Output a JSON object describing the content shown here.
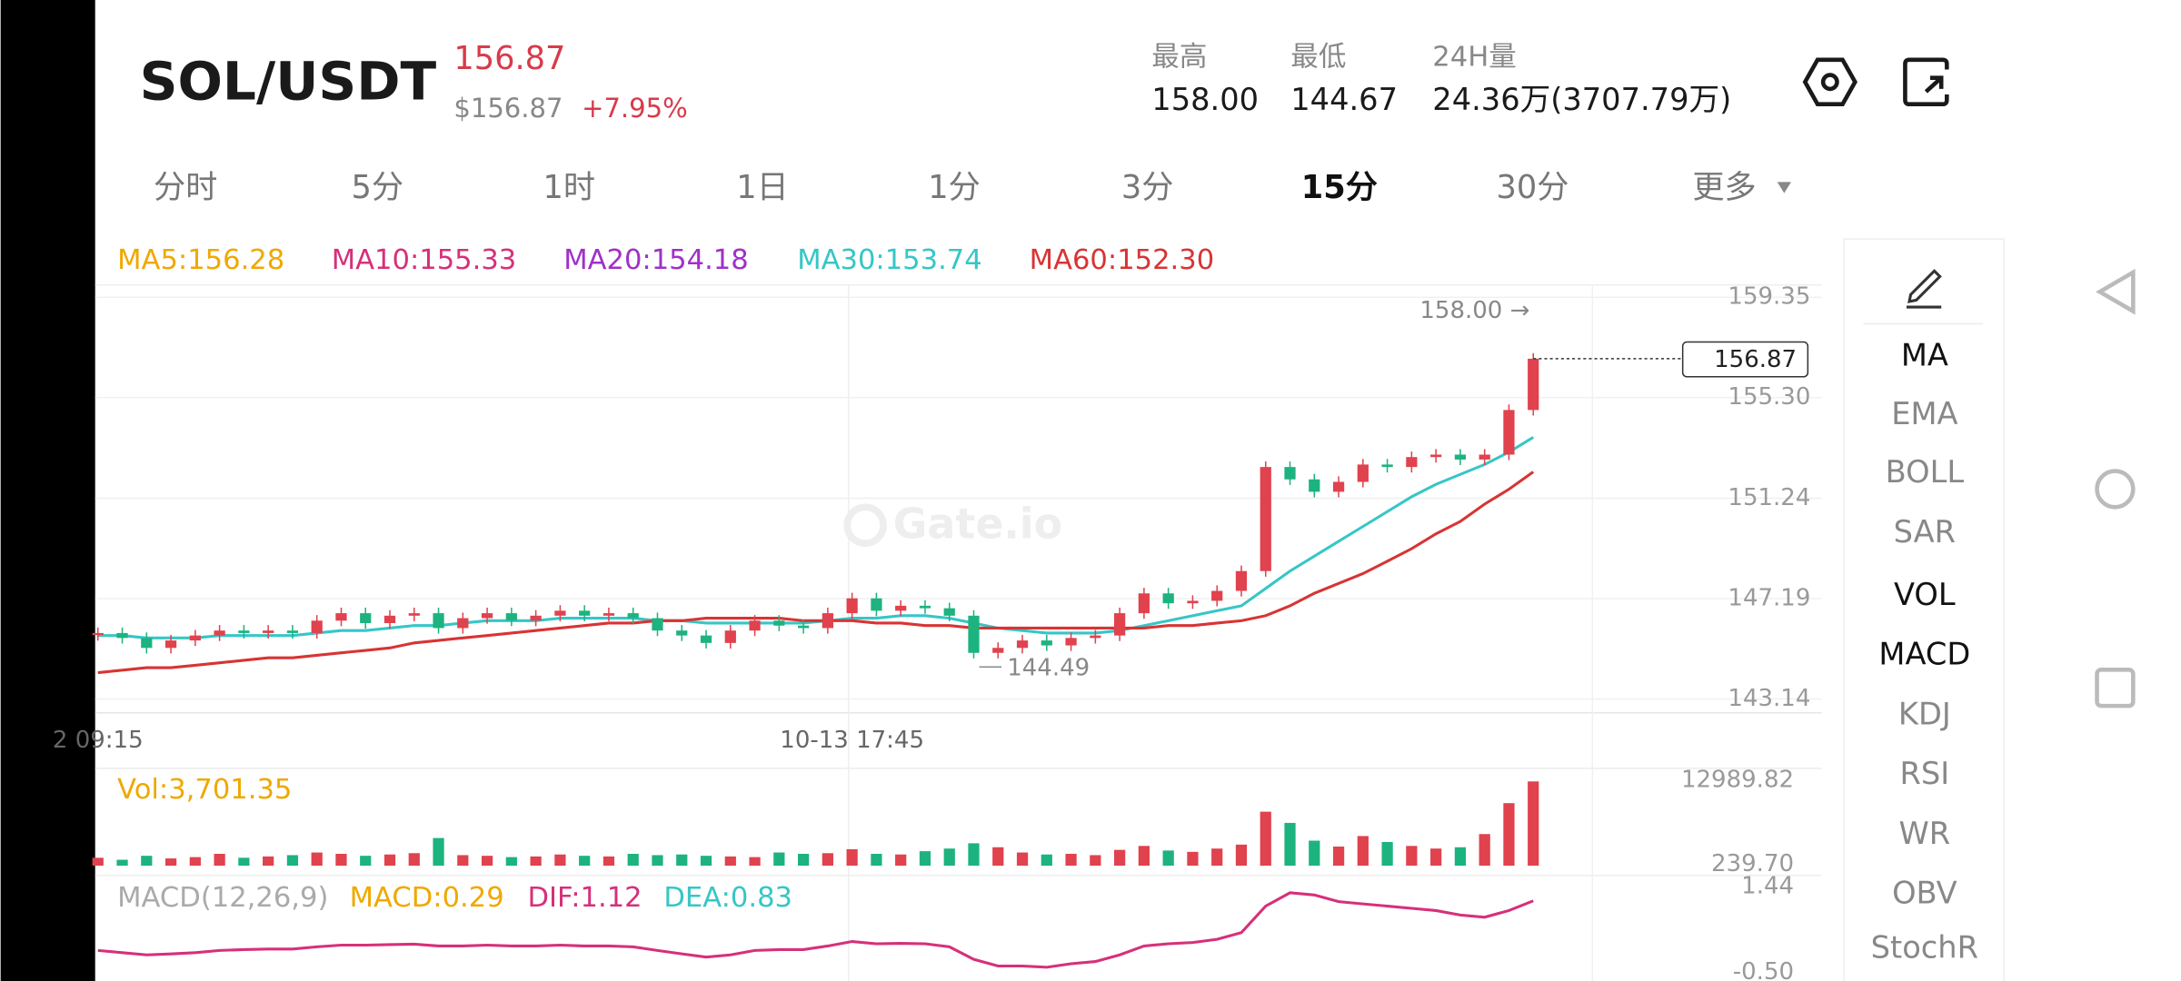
{
  "header": {
    "pair": "SOL/USDT",
    "price": "156.87",
    "price_usd": "$156.87",
    "change": "+7.95%"
  },
  "stats": [
    {
      "label": "最高",
      "value": "158.00"
    },
    {
      "label": "最低",
      "value": "144.67"
    },
    {
      "label": "24H量",
      "value": "24.36万(3707.79万)"
    }
  ],
  "tabs": [
    "分时",
    "5分",
    "1时",
    "1日",
    "1分",
    "3分",
    "15分",
    "30分",
    "更多"
  ],
  "active_tab": 6,
  "indicators": [
    {
      "label": "MA",
      "active": true
    },
    {
      "label": "EMA",
      "active": false
    },
    {
      "label": "BOLL",
      "active": false
    },
    {
      "label": "SAR",
      "active": false
    },
    {
      "label": "VOL",
      "active": true
    },
    {
      "label": "MACD",
      "active": true
    },
    {
      "label": "KDJ",
      "active": false
    },
    {
      "label": "RSI",
      "active": false
    },
    {
      "label": "WR",
      "active": false
    },
    {
      "label": "OBV",
      "active": false
    },
    {
      "label": "StochR",
      "active": false
    }
  ],
  "chart_data": {
    "type": "candlestick",
    "watermark": "Gate.io",
    "ma_legend": [
      {
        "text": "MA5:156.28",
        "color": "#f0a800"
      },
      {
        "text": "MA10:155.33",
        "color": "#d6307a"
      },
      {
        "text": "MA20:154.18",
        "color": "#a030c8"
      },
      {
        "text": "MA30:153.74",
        "color": "#36c6c6"
      },
      {
        "text": "MA60:152.30",
        "color": "#d83434"
      }
    ],
    "categories": [
      "2 09:15",
      null,
      null,
      null,
      null,
      null,
      null,
      null,
      null,
      null,
      null,
      null,
      null,
      null,
      null,
      null,
      null,
      null,
      null,
      null,
      null,
      null,
      null,
      null,
      null,
      null,
      null,
      null,
      null,
      null,
      null,
      "10-13 17:45",
      null,
      null,
      null,
      null,
      null,
      null,
      null,
      null,
      null,
      null,
      null,
      null,
      null,
      null,
      null,
      null,
      null,
      null,
      null,
      null,
      null,
      null,
      null,
      null,
      null,
      null,
      null,
      null
    ],
    "values": [
      145.8,
      145.6,
      145.2,
      145.5,
      145.7,
      145.9,
      145.8,
      145.9,
      145.8,
      146.3,
      146.6,
      146.2,
      146.5,
      146.6,
      146.0,
      146.4,
      146.6,
      146.3,
      146.5,
      146.7,
      146.5,
      146.6,
      146.4,
      145.9,
      145.7,
      145.4,
      145.9,
      146.3,
      146.1,
      146.0,
      146.6,
      147.2,
      146.7,
      146.9,
      146.8,
      146.5,
      145.0,
      145.2,
      145.5,
      145.3,
      145.6,
      145.7,
      146.6,
      147.4,
      147.0,
      147.1,
      147.5,
      148.3,
      152.5,
      152.0,
      151.5,
      151.9,
      152.6,
      152.5,
      152.9,
      153.0,
      152.8,
      153.0,
      154.8,
      156.87
    ],
    "up_color": "#e0424e",
    "down_color": "#1db37f",
    "lines": [
      {
        "color": "#36c6c6",
        "values": [
          145.7,
          145.7,
          145.6,
          145.6,
          145.6,
          145.7,
          145.7,
          145.7,
          145.7,
          145.8,
          145.9,
          145.9,
          146.0,
          146.1,
          146.1,
          146.2,
          146.3,
          146.3,
          146.3,
          146.4,
          146.4,
          146.4,
          146.4,
          146.3,
          146.3,
          146.2,
          146.2,
          146.2,
          146.2,
          146.2,
          146.3,
          146.4,
          146.4,
          146.5,
          146.5,
          146.4,
          146.2,
          146.0,
          145.9,
          145.8,
          145.8,
          145.8,
          145.9,
          146.1,
          146.3,
          146.5,
          146.7,
          146.9,
          147.6,
          148.3,
          148.9,
          149.5,
          150.1,
          150.7,
          151.3,
          151.8,
          152.2,
          152.6,
          153.1,
          153.7
        ]
      },
      {
        "color": "#d83434",
        "values": [
          144.2,
          144.3,
          144.4,
          144.4,
          144.5,
          144.6,
          144.7,
          144.8,
          144.8,
          144.9,
          145.0,
          145.1,
          145.2,
          145.4,
          145.5,
          145.6,
          145.7,
          145.8,
          145.9,
          146.0,
          146.1,
          146.2,
          146.2,
          146.3,
          146.3,
          146.4,
          146.4,
          146.4,
          146.4,
          146.3,
          146.3,
          146.3,
          146.2,
          146.2,
          146.1,
          146.1,
          146.0,
          146.0,
          146.0,
          146.0,
          146.0,
          146.0,
          146.0,
          146.0,
          146.1,
          146.1,
          146.2,
          146.3,
          146.5,
          146.9,
          147.4,
          147.8,
          148.2,
          148.7,
          149.2,
          149.8,
          150.3,
          151.0,
          151.6,
          152.3
        ]
      }
    ],
    "ylim": [
      142.58,
      159.85
    ],
    "yticks": [
      159.35,
      {
        "value": 155.3,
        "label": "155.30"
      },
      151.24,
      147.19,
      143.14
    ],
    "grid": true,
    "high_label": "158.00 →",
    "low_label": "144.49",
    "last_price": 156.87,
    "volume": {
      "label": "Vol:3,701.35",
      "values": [
        1200,
        900,
        1500,
        1100,
        1300,
        1800,
        1200,
        1400,
        1600,
        2000,
        1800,
        1500,
        1700,
        1900,
        4200,
        1600,
        1500,
        1300,
        1400,
        1700,
        1500,
        1400,
        1800,
        1600,
        1700,
        1500,
        1400,
        1300,
        2000,
        1800,
        1900,
        2500,
        1800,
        1700,
        2200,
        2600,
        3400,
        2800,
        2000,
        1700,
        1800,
        1600,
        2400,
        3000,
        2300,
        2100,
        2600,
        3200,
        8200,
        6500,
        3800,
        2900,
        4500,
        3600,
        3000,
        2600,
        2800,
        4800,
        9500,
        12800
      ],
      "ylim": [
        0,
        13300
      ],
      "yticks": [
        12989.82,
        {
          "value": 239.7,
          "label": "239.70"
        }
      ]
    },
    "macd": {
      "legend": [
        {
          "text": "MACD(12,26,9)",
          "color": "#aaaaaa"
        },
        {
          "text": "MACD:0.29",
          "color": "#f0a800"
        },
        {
          "text": "DIF:1.12",
          "color": "#d6307a"
        },
        {
          "text": "DEA:0.83",
          "color": "#36c6c6"
        }
      ],
      "dif": {
        "color": "#d6307a",
        "values": [
          0.0,
          -0.05,
          -0.1,
          -0.08,
          -0.05,
          0.0,
          0.02,
          0.03,
          0.03,
          0.08,
          0.12,
          0.12,
          0.13,
          0.14,
          0.1,
          0.1,
          0.12,
          0.1,
          0.1,
          0.12,
          0.1,
          0.1,
          0.08,
          0.0,
          -0.08,
          -0.15,
          -0.1,
          0.0,
          0.02,
          0.02,
          0.1,
          0.2,
          0.15,
          0.16,
          0.15,
          0.08,
          -0.2,
          -0.35,
          -0.35,
          -0.38,
          -0.3,
          -0.25,
          -0.1,
          0.1,
          0.15,
          0.18,
          0.25,
          0.4,
          1.0,
          1.3,
          1.25,
          1.1,
          1.05,
          1.0,
          0.95,
          0.9,
          0.8,
          0.75,
          0.9,
          1.12
        ]
      },
      "ylim": [
        -0.69,
        1.63
      ],
      "yticks": [
        1.44,
        {
          "value": -0.5,
          "label": "-0.50"
        }
      ]
    }
  }
}
